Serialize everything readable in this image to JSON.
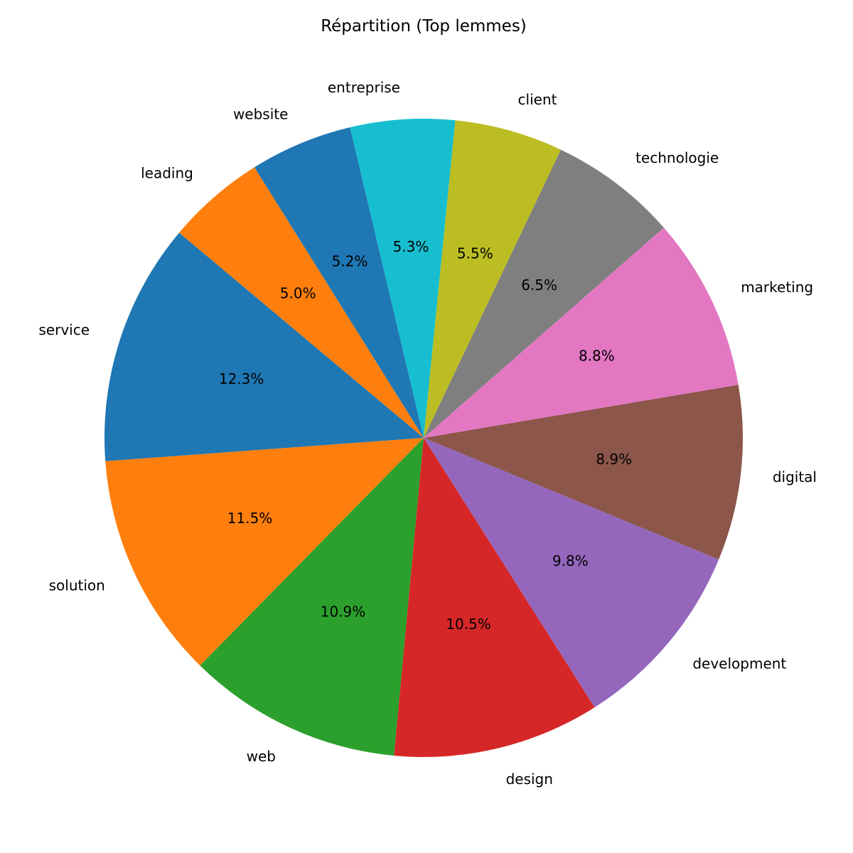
{
  "chart_data": {
    "type": "pie",
    "title": "Répartition (Top lemmes)",
    "start_angle_deg": 140,
    "direction": "counterclockwise",
    "legend": "none",
    "slices": [
      {
        "label": "service",
        "value": 12.3,
        "pct_label": "12.3%",
        "color": "#1f77b4"
      },
      {
        "label": "solution",
        "value": 11.5,
        "pct_label": "11.5%",
        "color": "#ff7f0e"
      },
      {
        "label": "web",
        "value": 10.9,
        "pct_label": "10.9%",
        "color": "#2ca02c"
      },
      {
        "label": "design",
        "value": 10.5,
        "pct_label": "10.5%",
        "color": "#d62728"
      },
      {
        "label": "development",
        "value": 9.8,
        "pct_label": "9.8%",
        "color": "#9467bd"
      },
      {
        "label": "digital",
        "value": 8.9,
        "pct_label": "8.9%",
        "color": "#8c564b"
      },
      {
        "label": "marketing",
        "value": 8.8,
        "pct_label": "8.8%",
        "color": "#e377c2"
      },
      {
        "label": "technologie",
        "value": 6.5,
        "pct_label": "6.5%",
        "color": "#7f7f7f"
      },
      {
        "label": "client",
        "value": 5.5,
        "pct_label": "5.5%",
        "color": "#bcbd22"
      },
      {
        "label": "entreprise",
        "value": 5.3,
        "pct_label": "5.3%",
        "color": "#17becf"
      },
      {
        "label": "website",
        "value": 5.2,
        "pct_label": "5.2%",
        "color": "#1f77b4"
      },
      {
        "label": "leading",
        "value": 5.0,
        "pct_label": "5.0%",
        "color": "#ff7f0e"
      }
    ]
  }
}
